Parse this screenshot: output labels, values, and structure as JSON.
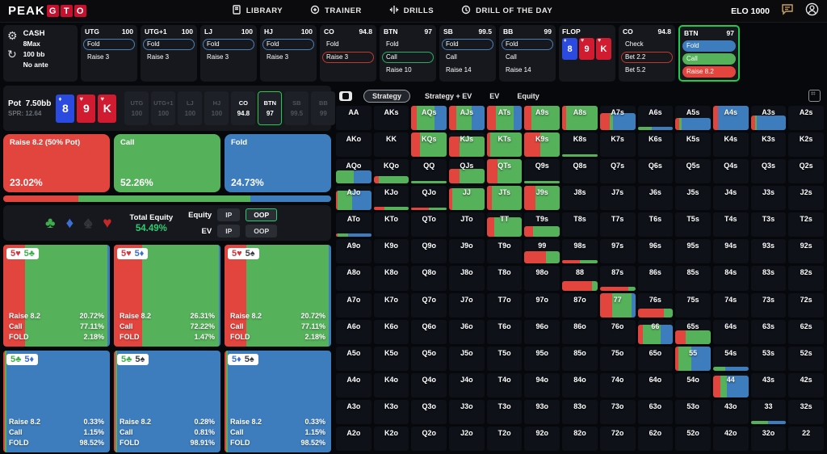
{
  "colors": {
    "red": "#e2453e",
    "green": "#55b15a",
    "blue": "#3e7dbd",
    "accent_green": "#1ecb4f",
    "equity_green": "#2ecc71"
  },
  "header": {
    "logo_peak": "PEAK",
    "logo_gto": [
      "G",
      "T",
      "O"
    ],
    "nav": [
      {
        "label": "LIBRARY",
        "icon": "library-icon"
      },
      {
        "label": "TRAINER",
        "icon": "trainer-icon"
      },
      {
        "label": "DRILLS",
        "icon": "drills-icon"
      },
      {
        "label": "DRILL OF THE DAY",
        "icon": "drill-of-day-icon"
      }
    ],
    "elo": "ELO 1000"
  },
  "settings": {
    "mode": "CASH",
    "players": "8Max",
    "stack": "100 bb",
    "ante": "No ante"
  },
  "preflop_positions": [
    {
      "name": "UTG",
      "stack": "100",
      "actions": [
        {
          "label": "Fold",
          "style": "outline-blue"
        },
        {
          "label": "Raise 3",
          "style": "plain"
        }
      ]
    },
    {
      "name": "UTG+1",
      "stack": "100",
      "actions": [
        {
          "label": "Fold",
          "style": "outline-blue"
        },
        {
          "label": "Raise 3",
          "style": "plain"
        }
      ]
    },
    {
      "name": "LJ",
      "stack": "100",
      "actions": [
        {
          "label": "Fold",
          "style": "outline-blue"
        },
        {
          "label": "Raise 3",
          "style": "plain"
        }
      ]
    },
    {
      "name": "HJ",
      "stack": "100",
      "actions": [
        {
          "label": "Fold",
          "style": "outline-blue"
        },
        {
          "label": "Raise 3",
          "style": "plain"
        }
      ]
    },
    {
      "name": "CO",
      "stack": "94.8",
      "actions": [
        {
          "label": "Fold",
          "style": "plain"
        },
        {
          "label": "Raise 3",
          "style": "outline-red"
        }
      ]
    },
    {
      "name": "BTN",
      "stack": "97",
      "actions": [
        {
          "label": "Fold",
          "style": "plain"
        },
        {
          "label": "Call",
          "style": "outline-green"
        },
        {
          "label": "Raise 10",
          "style": "plain"
        }
      ]
    },
    {
      "name": "SB",
      "stack": "99.5",
      "actions": [
        {
          "label": "Fold",
          "style": "outline-blue"
        },
        {
          "label": "Call",
          "style": "plain"
        },
        {
          "label": "Raise 14",
          "style": "plain"
        }
      ]
    },
    {
      "name": "BB",
      "stack": "99",
      "actions": [
        {
          "label": "Fold",
          "style": "outline-blue"
        },
        {
          "label": "Call",
          "style": "plain"
        },
        {
          "label": "Raise 14",
          "style": "plain"
        }
      ]
    }
  ],
  "flop": {
    "label": "FLOP",
    "cards": [
      {
        "rank": "8",
        "suit": "diamond"
      },
      {
        "rank": "9",
        "suit": "heart"
      },
      {
        "rank": "K",
        "suit": "heart"
      }
    ]
  },
  "postflop_positions": [
    {
      "name": "CO",
      "stack": "94.8",
      "active": false,
      "actions": [
        {
          "label": "Check",
          "style": "plain"
        },
        {
          "label": "Bet 2.2",
          "style": "outline-red"
        },
        {
          "label": "Bet 5.2",
          "style": "plain"
        }
      ]
    },
    {
      "name": "BTN",
      "stack": "97",
      "active": true,
      "actions": [
        {
          "label": "Fold",
          "style": "fill-blue"
        },
        {
          "label": "Call",
          "style": "fill-green"
        },
        {
          "label": "Raise 8.2",
          "style": "fill-red"
        }
      ]
    }
  ],
  "pot": {
    "label": "Pot",
    "value": "7.50bb",
    "spr": "SPR: 12.64"
  },
  "board_chips": [
    {
      "name": "UTG",
      "stack": "100",
      "state": "folded"
    },
    {
      "name": "UTG+1",
      "stack": "100",
      "state": "folded"
    },
    {
      "name": "LJ",
      "stack": "100",
      "state": "folded"
    },
    {
      "name": "HJ",
      "stack": "100",
      "state": "folded"
    },
    {
      "name": "CO",
      "stack": "94.8",
      "state": "active"
    },
    {
      "name": "BTN",
      "stack": "97",
      "state": "hero"
    },
    {
      "name": "SB",
      "stack": "99.5",
      "state": "folded"
    },
    {
      "name": "BB",
      "stack": "99",
      "state": "folded"
    }
  ],
  "strategy_summary": [
    {
      "label": "Raise 8.2 (50% Pot)",
      "pct": "23.02%",
      "color": "red",
      "frac": 23.02
    },
    {
      "label": "Call",
      "pct": "52.26%",
      "color": "green",
      "frac": 52.26
    },
    {
      "label": "Fold",
      "pct": "24.73%",
      "color": "blue",
      "frac": 24.73
    }
  ],
  "equity_panel": {
    "suits": [
      {
        "name": "club"
      },
      {
        "name": "diamond"
      },
      {
        "name": "spade"
      },
      {
        "name": "heart"
      }
    ],
    "total_label": "Total Equity",
    "total_value": "54.49%",
    "rows": [
      {
        "label": "Equity",
        "ip": "IP",
        "oop": "OOP",
        "active": "OOP"
      },
      {
        "label": "EV",
        "ip": "IP",
        "oop": "OOP",
        "active": ""
      }
    ]
  },
  "combo_labels": {
    "raise": "Raise 8.2",
    "call": "Call",
    "fold": "FOLD"
  },
  "combos": [
    {
      "cards": [
        {
          "r": "5",
          "s": "heart"
        },
        {
          "r": "5",
          "s": "club"
        }
      ],
      "raise": "20.72%",
      "call": "77.11%",
      "fold": "2.18%",
      "f": [
        20.72,
        77.11,
        2.18
      ]
    },
    {
      "cards": [
        {
          "r": "5",
          "s": "heart"
        },
        {
          "r": "5",
          "s": "diamond"
        }
      ],
      "raise": "26.31%",
      "call": "72.22%",
      "fold": "1.47%",
      "f": [
        26.31,
        72.22,
        1.47
      ]
    },
    {
      "cards": [
        {
          "r": "5",
          "s": "heart"
        },
        {
          "r": "5",
          "s": "spade"
        }
      ],
      "raise": "20.72%",
      "call": "77.11%",
      "fold": "2.18%",
      "f": [
        20.72,
        77.11,
        2.18
      ]
    },
    {
      "cards": [
        {
          "r": "5",
          "s": "club"
        },
        {
          "r": "5",
          "s": "diamond"
        }
      ],
      "raise": "0.33%",
      "call": "1.15%",
      "fold": "98.52%",
      "f": [
        0.33,
        1.15,
        98.52
      ]
    },
    {
      "cards": [
        {
          "r": "5",
          "s": "club"
        },
        {
          "r": "5",
          "s": "spade"
        }
      ],
      "raise": "0.28%",
      "call": "0.81%",
      "fold": "98.91%",
      "f": [
        0.28,
        0.81,
        98.91
      ]
    },
    {
      "cards": [
        {
          "r": "5",
          "s": "diamond"
        },
        {
          "r": "5",
          "s": "spade"
        }
      ],
      "raise": "0.33%",
      "call": "1.15%",
      "fold": "98.52%",
      "f": [
        0.33,
        1.15,
        98.52
      ]
    }
  ],
  "tabs": {
    "items": [
      "Strategy",
      "Strategy + EV",
      "EV",
      "Equity"
    ],
    "active": "Strategy"
  },
  "matrix": {
    "rows": [
      [
        {
          "l": "AA"
        },
        {
          "l": "AKs"
        },
        {
          "l": "AQs",
          "h": 100,
          "s": [
            15,
            50,
            35
          ]
        },
        {
          "l": "AJs",
          "h": 100,
          "s": [
            20,
            45,
            35
          ]
        },
        {
          "l": "ATs",
          "h": 100,
          "s": [
            25,
            50,
            25
          ]
        },
        {
          "l": "A9s",
          "h": 100,
          "s": [
            20,
            80,
            0
          ]
        },
        {
          "l": "A8s",
          "h": 100,
          "s": [
            12,
            88,
            0
          ]
        },
        {
          "l": "A7s",
          "h": 70,
          "s": [
            28,
            10,
            62
          ]
        },
        {
          "l": "A6s",
          "h": 15,
          "s": [
            0,
            40,
            60
          ]
        },
        {
          "l": "A5s",
          "h": 50,
          "s": [
            12,
            6,
            82
          ]
        },
        {
          "l": "A4s",
          "h": 100,
          "s": [
            14,
            0,
            86
          ]
        },
        {
          "l": "A3s",
          "h": 60,
          "s": [
            12,
            6,
            82
          ]
        },
        {
          "l": "A2s"
        }
      ],
      [
        {
          "l": "AKo"
        },
        {
          "l": "KK"
        },
        {
          "l": "KQs",
          "h": 100,
          "s": [
            25,
            75,
            0
          ]
        },
        {
          "l": "KJs",
          "h": 85,
          "s": [
            30,
            70,
            0
          ]
        },
        {
          "l": "KTs",
          "h": 100,
          "s": [
            10,
            90,
            0
          ]
        },
        {
          "l": "K9s",
          "h": 100,
          "s": [
            45,
            55,
            0
          ]
        },
        {
          "l": "K8s",
          "h": 10,
          "s": [
            0,
            100,
            0
          ]
        },
        {
          "l": "K7s"
        },
        {
          "l": "K6s"
        },
        {
          "l": "K5s"
        },
        {
          "l": "K4s"
        },
        {
          "l": "K3s"
        },
        {
          "l": "K2s"
        }
      ],
      [
        {
          "l": "AQo",
          "h": 55,
          "s": [
            0,
            50,
            50
          ]
        },
        {
          "l": "KQo",
          "h": 30,
          "s": [
            15,
            85,
            0
          ]
        },
        {
          "l": "QQ",
          "h": 12,
          "s": [
            0,
            100,
            0
          ]
        },
        {
          "l": "QJs",
          "h": 60,
          "s": [
            30,
            70,
            0
          ]
        },
        {
          "l": "QTs",
          "h": 100,
          "s": [
            30,
            70,
            0
          ]
        },
        {
          "l": "Q9s",
          "h": 12,
          "s": [
            0,
            100,
            0
          ]
        },
        {
          "l": "Q8s"
        },
        {
          "l": "Q7s"
        },
        {
          "l": "Q6s"
        },
        {
          "l": "Q5s"
        },
        {
          "l": "Q4s"
        },
        {
          "l": "Q3s"
        },
        {
          "l": "Q2s"
        }
      ],
      [
        {
          "l": "AJo",
          "h": 80,
          "s": [
            5,
            40,
            55
          ]
        },
        {
          "l": "KJo",
          "h": 15,
          "s": [
            30,
            70,
            0
          ]
        },
        {
          "l": "QJo",
          "h": 12,
          "s": [
            50,
            50,
            0
          ]
        },
        {
          "l": "JJ",
          "h": 90,
          "s": [
            10,
            90,
            0
          ]
        },
        {
          "l": "JTs",
          "h": 100,
          "s": [
            15,
            85,
            0
          ]
        },
        {
          "l": "J9s",
          "h": 100,
          "s": [
            30,
            70,
            0
          ]
        },
        {
          "l": "J8s"
        },
        {
          "l": "J7s"
        },
        {
          "l": "J6s"
        },
        {
          "l": "J5s"
        },
        {
          "l": "J4s"
        },
        {
          "l": "J3s"
        },
        {
          "l": "J2s"
        }
      ],
      [
        {
          "l": "ATo",
          "h": 15,
          "s": [
            5,
            30,
            65
          ]
        },
        {
          "l": "KTo"
        },
        {
          "l": "QTo"
        },
        {
          "l": "JTo"
        },
        {
          "l": "TT",
          "h": 80,
          "s": [
            20,
            80,
            0
          ]
        },
        {
          "l": "T9s",
          "h": 45,
          "s": [
            25,
            75,
            0
          ]
        },
        {
          "l": "T8s"
        },
        {
          "l": "T7s"
        },
        {
          "l": "T6s"
        },
        {
          "l": "T5s"
        },
        {
          "l": "T4s"
        },
        {
          "l": "T3s"
        },
        {
          "l": "T2s"
        }
      ],
      [
        {
          "l": "A9o"
        },
        {
          "l": "K9o"
        },
        {
          "l": "Q9o"
        },
        {
          "l": "J9o"
        },
        {
          "l": "T9o"
        },
        {
          "l": "99",
          "h": 50,
          "s": [
            60,
            40,
            0
          ]
        },
        {
          "l": "98s",
          "h": 15,
          "s": [
            50,
            50,
            0
          ]
        },
        {
          "l": "97s"
        },
        {
          "l": "96s"
        },
        {
          "l": "95s"
        },
        {
          "l": "94s"
        },
        {
          "l": "93s"
        },
        {
          "l": "92s"
        }
      ],
      [
        {
          "l": "A8o"
        },
        {
          "l": "K8o"
        },
        {
          "l": "Q8o"
        },
        {
          "l": "J8o"
        },
        {
          "l": "T8o"
        },
        {
          "l": "98o"
        },
        {
          "l": "88",
          "h": 40,
          "s": [
            85,
            15,
            0
          ]
        },
        {
          "l": "87s",
          "h": 15,
          "s": [
            80,
            20,
            0
          ]
        },
        {
          "l": "86s"
        },
        {
          "l": "85s"
        },
        {
          "l": "84s"
        },
        {
          "l": "83s"
        },
        {
          "l": "82s"
        }
      ],
      [
        {
          "l": "A7o"
        },
        {
          "l": "K7o"
        },
        {
          "l": "Q7o"
        },
        {
          "l": "J7o"
        },
        {
          "l": "T7o"
        },
        {
          "l": "97o"
        },
        {
          "l": "87o"
        },
        {
          "l": "77",
          "h": 100,
          "s": [
            35,
            55,
            10
          ]
        },
        {
          "l": "76s",
          "h": 35,
          "s": [
            75,
            25,
            0
          ]
        },
        {
          "l": "75s"
        },
        {
          "l": "74s"
        },
        {
          "l": "73s"
        },
        {
          "l": "72s"
        }
      ],
      [
        {
          "l": "A6o"
        },
        {
          "l": "K6o"
        },
        {
          "l": "Q6o"
        },
        {
          "l": "J6o"
        },
        {
          "l": "T6o"
        },
        {
          "l": "96o"
        },
        {
          "l": "86o"
        },
        {
          "l": "76o"
        },
        {
          "l": "66",
          "h": 80,
          "s": [
            15,
            50,
            35
          ]
        },
        {
          "l": "65s",
          "h": 55,
          "s": [
            30,
            70,
            0
          ]
        },
        {
          "l": "64s"
        },
        {
          "l": "63s"
        },
        {
          "l": "62s"
        }
      ],
      [
        {
          "l": "A5o"
        },
        {
          "l": "K5o"
        },
        {
          "l": "Q5o"
        },
        {
          "l": "J5o"
        },
        {
          "l": "T5o"
        },
        {
          "l": "95o"
        },
        {
          "l": "85o"
        },
        {
          "l": "75o"
        },
        {
          "l": "65o"
        },
        {
          "l": "55",
          "h": 100,
          "s": [
            8,
            38,
            54
          ]
        },
        {
          "l": "54s",
          "h": 15,
          "s": [
            0,
            35,
            65
          ]
        },
        {
          "l": "53s"
        },
        {
          "l": "52s"
        }
      ],
      [
        {
          "l": "A4o"
        },
        {
          "l": "K4o"
        },
        {
          "l": "Q4o"
        },
        {
          "l": "J4o"
        },
        {
          "l": "T4o"
        },
        {
          "l": "94o"
        },
        {
          "l": "84o"
        },
        {
          "l": "74o"
        },
        {
          "l": "64o"
        },
        {
          "l": "54o"
        },
        {
          "l": "44",
          "h": 90,
          "s": [
            20,
            20,
            60
          ]
        },
        {
          "l": "43s"
        },
        {
          "l": "42s"
        }
      ],
      [
        {
          "l": "A3o"
        },
        {
          "l": "K3o"
        },
        {
          "l": "Q3o"
        },
        {
          "l": "J3o"
        },
        {
          "l": "T3o"
        },
        {
          "l": "93o"
        },
        {
          "l": "83o"
        },
        {
          "l": "73o"
        },
        {
          "l": "63o"
        },
        {
          "l": "53o"
        },
        {
          "l": "43o"
        },
        {
          "l": "33",
          "h": 12,
          "s": [
            0,
            50,
            50
          ]
        },
        {
          "l": "32s"
        }
      ],
      [
        {
          "l": "A2o"
        },
        {
          "l": "K2o"
        },
        {
          "l": "Q2o"
        },
        {
          "l": "J2o"
        },
        {
          "l": "T2o"
        },
        {
          "l": "92o"
        },
        {
          "l": "82o"
        },
        {
          "l": "72o"
        },
        {
          "l": "62o"
        },
        {
          "l": "52o"
        },
        {
          "l": "42o"
        },
        {
          "l": "32o"
        },
        {
          "l": "22"
        }
      ]
    ]
  }
}
